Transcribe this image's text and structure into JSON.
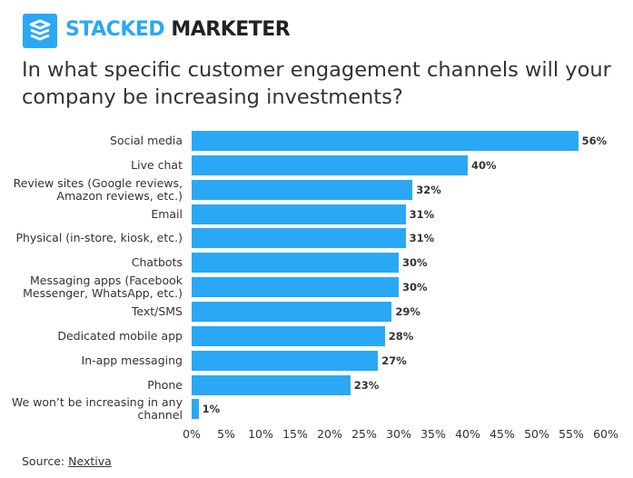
{
  "header": {
    "brand_part1": "STACKED",
    "brand_part2": "MARKETER"
  },
  "chart_data": {
    "type": "bar",
    "orientation": "horizontal",
    "title": "In what specific customer engagement channels will your company be increasing investments?",
    "categories": [
      "Social media",
      "Live chat",
      "Review sites (Google reviews, Amazon reviews, etc.)",
      "Email",
      "Physical (in-store, kiosk, etc.)",
      "Chatbots",
      "Messaging apps (Facebook Messenger, WhatsApp, etc.)",
      "Text/SMS",
      "Dedicated mobile app",
      "In-app messaging",
      "Phone",
      "We won’t be increasing in any channel"
    ],
    "values": [
      56,
      40,
      32,
      31,
      31,
      30,
      30,
      29,
      28,
      27,
      23,
      1
    ],
    "value_labels": [
      "56%",
      "40%",
      "32%",
      "31%",
      "31%",
      "30%",
      "30%",
      "29%",
      "28%",
      "27%",
      "23%",
      "1%"
    ],
    "color": "#2aa8f5",
    "xlim": [
      0,
      60
    ],
    "xticks": [
      {
        "value": 0,
        "label": "0%"
      },
      {
        "value": 5,
        "label": "5%"
      },
      {
        "value": 10,
        "label": "10%"
      },
      {
        "value": 15,
        "label": "15%"
      },
      {
        "value": 20,
        "label": "20%"
      },
      {
        "value": 25,
        "label": "25%"
      },
      {
        "value": 30,
        "label": "30%"
      },
      {
        "value": 35,
        "label": "35%"
      },
      {
        "value": 40,
        "label": "40%"
      },
      {
        "value": 45,
        "label": "45%"
      },
      {
        "value": 50,
        "label": "50%"
      },
      {
        "value": 55,
        "label": "55%"
      },
      {
        "value": 60,
        "label": "60%"
      }
    ]
  },
  "source": {
    "prefix": "Source:",
    "link": "Nextiva"
  }
}
